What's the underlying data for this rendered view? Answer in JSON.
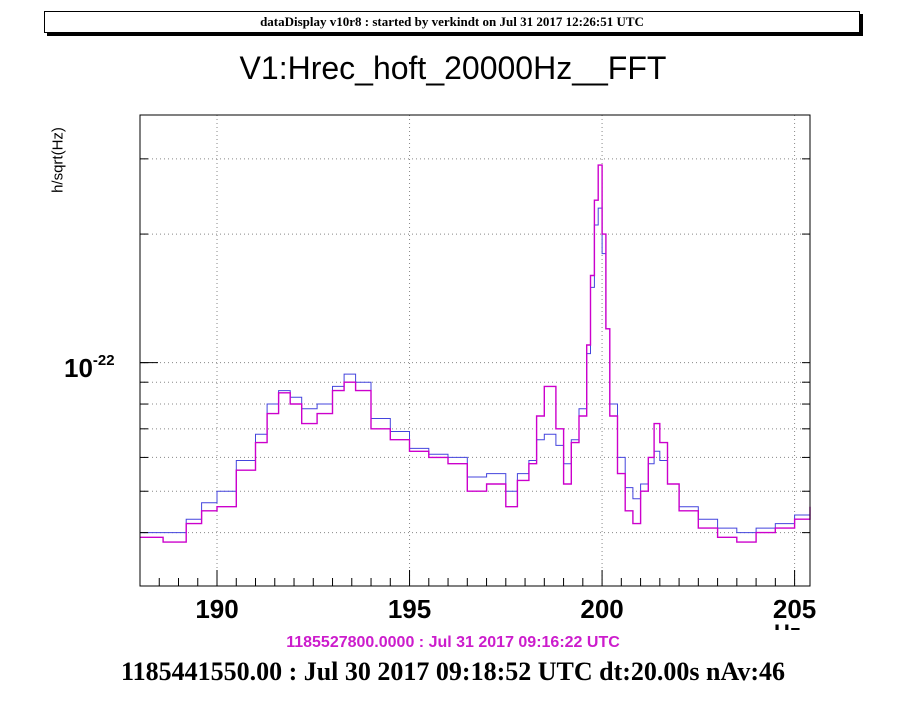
{
  "header": {
    "text": "dataDisplay v10r8 : started by verkindt on Jul 31 2017 12:26:51 UTC"
  },
  "footer": {
    "reference_time": "1185527800.0000 : Jul 31 2017 09:16:22 UTC",
    "info": "1185441550.00 : Jul 30 2017 09:18:52 UTC dt:20.00s nAv:46"
  },
  "colors": {
    "series_current": "#cc00cc",
    "series_reference": "#4444dd",
    "grid": "#888888"
  },
  "chart_data": {
    "type": "line",
    "title": "V1:Hrec_hoft_20000Hz__FFT",
    "ylabel": "h/sqrt(Hz)",
    "xlabel": "Hz",
    "xlim": [
      188,
      205.4
    ],
    "ylim": [
      3e-23,
      3.8e-22
    ],
    "yscale": "log",
    "grid": true,
    "x_ticks": [
      190,
      195,
      200,
      205
    ],
    "y_tick_label": {
      "base": "10",
      "exponent": "-22"
    },
    "series": [
      {
        "x": [
          188.0,
          188.6,
          189.2,
          189.6,
          190.0,
          190.5,
          191.0,
          191.3,
          191.6,
          191.9,
          192.2,
          192.6,
          193.0,
          193.3,
          193.6,
          194.0,
          194.5,
          195.0,
          195.5,
          196.0,
          196.5,
          197.0,
          197.5,
          197.8,
          198.1,
          198.3,
          198.5,
          198.8,
          199.0,
          199.2,
          199.4,
          199.6,
          199.7,
          199.8,
          199.9,
          200.0,
          200.1,
          200.2,
          200.4,
          200.6,
          200.8,
          201.0,
          201.2,
          201.35,
          201.5,
          201.7,
          202.0,
          202.5,
          203.0,
          203.5,
          204.0,
          204.5,
          205.0,
          205.4
        ],
        "values": [
          3.9e-23,
          3.8e-23,
          4.2e-23,
          4.5e-23,
          4.6e-23,
          5.6e-23,
          6.5e-23,
          7.6e-23,
          8.5e-23,
          8e-23,
          7.2e-23,
          7.6e-23,
          8.6e-23,
          9e-23,
          8.6e-23,
          7e-23,
          6.6e-23,
          6.2e-23,
          6e-23,
          5.8e-23,
          5e-23,
          5.2e-23,
          4.6e-23,
          5.3e-23,
          5.8e-23,
          7.5e-23,
          8.8e-23,
          7e-23,
          5.2e-23,
          6.5e-23,
          7.5e-23,
          1.1e-22,
          1.6e-22,
          2.4e-22,
          2.9e-22,
          2e-22,
          1.2e-22,
          7.5e-23,
          5.5e-23,
          4.5e-23,
          4.2e-23,
          5e-23,
          6e-23,
          7.2e-23,
          6.5e-23,
          5.2e-23,
          4.5e-23,
          4.1e-23,
          3.9e-23,
          3.8e-23,
          4e-23,
          4.1e-23,
          4.3e-23,
          4.6e-23
        ]
      },
      {
        "x": [
          188.0,
          188.6,
          189.2,
          189.6,
          190.0,
          190.5,
          191.0,
          191.3,
          191.6,
          191.9,
          192.2,
          192.6,
          193.0,
          193.3,
          193.6,
          194.0,
          194.5,
          195.0,
          195.5,
          196.0,
          196.5,
          197.0,
          197.5,
          197.8,
          198.1,
          198.3,
          198.5,
          198.8,
          199.0,
          199.2,
          199.4,
          199.6,
          199.7,
          199.8,
          199.9,
          200.0,
          200.1,
          200.2,
          200.4,
          200.6,
          200.8,
          201.0,
          201.2,
          201.35,
          201.5,
          201.7,
          202.0,
          202.5,
          203.0,
          203.5,
          204.0,
          204.5,
          205.0,
          205.4
        ],
        "values": [
          4e-23,
          4e-23,
          4.3e-23,
          4.7e-23,
          5e-23,
          5.9e-23,
          6.8e-23,
          8e-23,
          8.6e-23,
          8.3e-23,
          7.8e-23,
          8e-23,
          8.8e-23,
          9.4e-23,
          9e-23,
          7.4e-23,
          6.9e-23,
          6.3e-23,
          6.1e-23,
          6e-23,
          5.4e-23,
          5.5e-23,
          5e-23,
          5.5e-23,
          5.9e-23,
          6.6e-23,
          6.8e-23,
          6.4e-23,
          5.8e-23,
          6.6e-23,
          7.8e-23,
          1.05e-22,
          1.5e-22,
          2.1e-22,
          2.3e-22,
          1.8e-22,
          1.2e-22,
          8e-23,
          6e-23,
          5.1e-23,
          4.8e-23,
          5.2e-23,
          5.8e-23,
          6.2e-23,
          5.9e-23,
          5.2e-23,
          4.6e-23,
          4.3e-23,
          4.1e-23,
          4e-23,
          4.1e-23,
          4.2e-23,
          4.4e-23,
          4.6e-23
        ]
      }
    ]
  }
}
